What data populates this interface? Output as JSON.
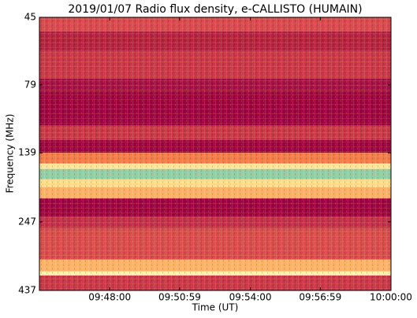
{
  "chart_data": {
    "type": "spectrogram",
    "title": "2019/01/07  Radio flux density, e-CALLISTO (HUMAIN)",
    "x_label": "Time (UT)",
    "y_label": "Frequency (MHz)",
    "xlim": [
      "09:45:00",
      "10:00:00"
    ],
    "xticks": [
      "09:48:00",
      "09:50:59",
      "09:54:00",
      "09:56:59",
      "10:00:00"
    ],
    "ylim": [
      45,
      437
    ],
    "y_log": true,
    "y_inverted": true,
    "yticks": [
      45,
      79,
      139,
      247,
      437
    ],
    "bands": [
      {
        "from": 45,
        "to": 50.6,
        "color": "#d8464f"
      },
      {
        "from": 50.6,
        "to": 59.6,
        "color": "#b4203f"
      },
      {
        "from": 59.6,
        "to": 75,
        "color": "#c93548"
      },
      {
        "from": 75,
        "to": 83.8,
        "color": "#a50f45"
      },
      {
        "from": 83.8,
        "to": 111,
        "color": "#9e0142"
      },
      {
        "from": 111,
        "to": 125,
        "color": "#c83547"
      },
      {
        "from": 125,
        "to": 139,
        "color": "#9e0142"
      },
      {
        "from": 139,
        "to": 152,
        "color": "#f47a4a"
      },
      {
        "from": 152,
        "to": 159,
        "color": "#fde89a"
      },
      {
        "from": 159,
        "to": 173,
        "color": "#8fd0a8"
      },
      {
        "from": 173,
        "to": 185,
        "color": "#fee08b"
      },
      {
        "from": 185,
        "to": 203,
        "color": "#fbb266"
      },
      {
        "from": 203,
        "to": 236,
        "color": "#9e0142"
      },
      {
        "from": 236,
        "to": 261,
        "color": "#c22e48"
      },
      {
        "from": 261,
        "to": 338,
        "color": "#d84a4c"
      },
      {
        "from": 338,
        "to": 373,
        "color": "#fdb466"
      },
      {
        "from": 373,
        "to": 386,
        "color": "#fff3b0"
      },
      {
        "from": 386,
        "to": 437,
        "color": "#c93548"
      }
    ]
  }
}
